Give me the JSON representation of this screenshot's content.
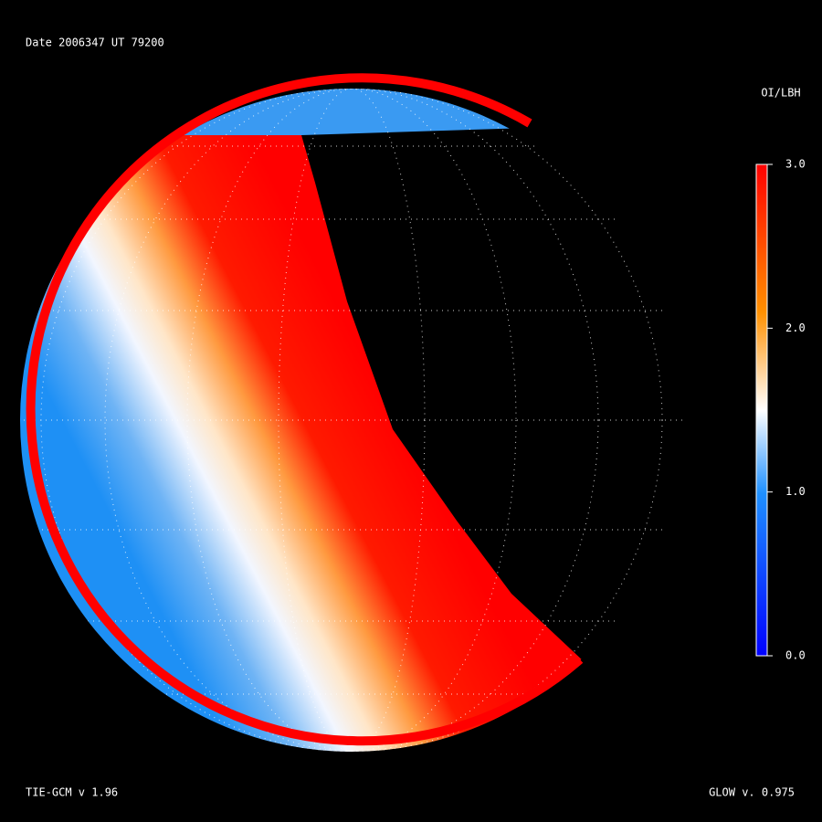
{
  "header": {
    "date": "Date 2006347   UT 79200"
  },
  "colorbar": {
    "label": "OI/LBH",
    "lim": [
      0,
      3
    ],
    "ticks": [
      {
        "value": 0,
        "label": "0.0"
      },
      {
        "value": 1,
        "label": "1.0"
      },
      {
        "value": 2,
        "label": "2.0"
      },
      {
        "value": 3,
        "label": "3.0"
      }
    ]
  },
  "footer": {
    "left": "TIE-GCM v 1.96",
    "right": "GLOW v. 0.975"
  }
}
